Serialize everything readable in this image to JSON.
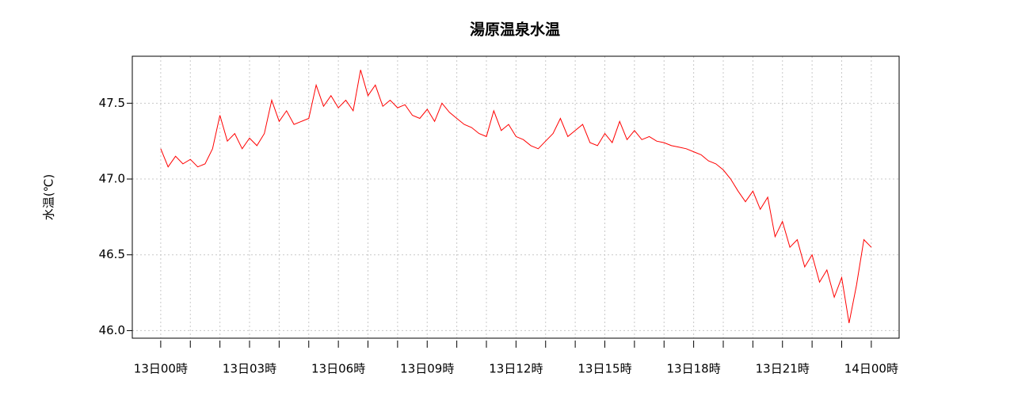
{
  "chart_data": {
    "type": "line",
    "title": "湯原温泉水温",
    "y_label": "水温(℃)",
    "x": [
      0,
      0.25,
      0.5,
      0.75,
      1,
      1.25,
      1.5,
      1.75,
      2,
      2.25,
      2.5,
      2.75,
      3,
      3.25,
      3.5,
      3.75,
      4,
      4.25,
      4.5,
      4.75,
      5,
      5.25,
      5.5,
      5.75,
      6,
      6.25,
      6.5,
      6.75,
      7,
      7.25,
      7.5,
      7.75,
      8,
      8.25,
      8.5,
      8.75,
      9,
      9.25,
      9.5,
      9.75,
      10,
      10.25,
      10.5,
      10.75,
      11,
      11.25,
      11.5,
      11.75,
      12,
      12.25,
      12.5,
      12.75,
      13,
      13.25,
      13.5,
      13.75,
      14,
      14.25,
      14.5,
      14.75,
      15,
      15.25,
      15.5,
      15.75,
      16,
      16.25,
      16.5,
      16.75,
      17,
      17.25,
      17.5,
      17.75,
      18,
      18.25,
      18.5,
      18.75,
      19,
      19.25,
      19.5,
      19.75,
      20,
      20.25,
      20.5,
      20.75,
      21,
      21.25,
      21.5,
      21.75,
      22,
      22.25,
      22.5,
      22.75,
      23,
      23.25,
      23.5,
      23.75,
      24
    ],
    "series": [
      {
        "name": "水温",
        "color": "#ff0000",
        "values": [
          47.2,
          47.08,
          47.15,
          47.1,
          47.13,
          47.08,
          47.1,
          47.2,
          47.42,
          47.25,
          47.3,
          47.2,
          47.27,
          47.22,
          47.3,
          47.52,
          47.38,
          47.45,
          47.36,
          47.38,
          47.4,
          47.62,
          47.48,
          47.55,
          47.47,
          47.52,
          47.45,
          47.72,
          47.55,
          47.62,
          47.48,
          47.52,
          47.47,
          47.49,
          47.42,
          47.4,
          47.46,
          47.38,
          47.5,
          47.44,
          47.4,
          47.36,
          47.34,
          47.3,
          47.28,
          47.45,
          47.32,
          47.36,
          47.28,
          47.26,
          47.22,
          47.2,
          47.25,
          47.3,
          47.4,
          47.28,
          47.32,
          47.36,
          47.24,
          47.22,
          47.3,
          47.24,
          47.38,
          47.26,
          47.32,
          47.26,
          47.28,
          47.25,
          47.24,
          47.22,
          47.21,
          47.2,
          47.18,
          47.16,
          47.12,
          47.1,
          47.06,
          47.0,
          46.92,
          46.85,
          46.92,
          46.8,
          46.88,
          46.62,
          46.72,
          46.55,
          46.6,
          46.42,
          46.5,
          46.32,
          46.4,
          46.22,
          46.35,
          46.05,
          46.3,
          46.6,
          46.55
        ]
      }
    ],
    "xlim": [
      -0.96,
      24.94
    ],
    "xticks": [
      {
        "value": 0,
        "label": "13日00時"
      },
      {
        "value": 3,
        "label": "13日03時"
      },
      {
        "value": 6,
        "label": "13日06時"
      },
      {
        "value": 9,
        "label": "13日09時"
      },
      {
        "value": 12,
        "label": "13日12時"
      },
      {
        "value": 15,
        "label": "13日15時"
      },
      {
        "value": 18,
        "label": "13日18時"
      },
      {
        "value": 21,
        "label": "13日21時"
      },
      {
        "value": 24,
        "label": "14日00時"
      }
    ],
    "x_minor_ticks": [
      1,
      2,
      4,
      5,
      7,
      8,
      10,
      11,
      13,
      14,
      16,
      17,
      19,
      20,
      22,
      23
    ],
    "ylim": [
      45.95,
      47.81
    ],
    "yticks": [
      {
        "value": 46.0,
        "label": "46.0"
      },
      {
        "value": 46.5,
        "label": "46.5"
      },
      {
        "value": 47.0,
        "label": "47.0"
      },
      {
        "value": 47.5,
        "label": "47.5"
      }
    ],
    "grid": true
  }
}
